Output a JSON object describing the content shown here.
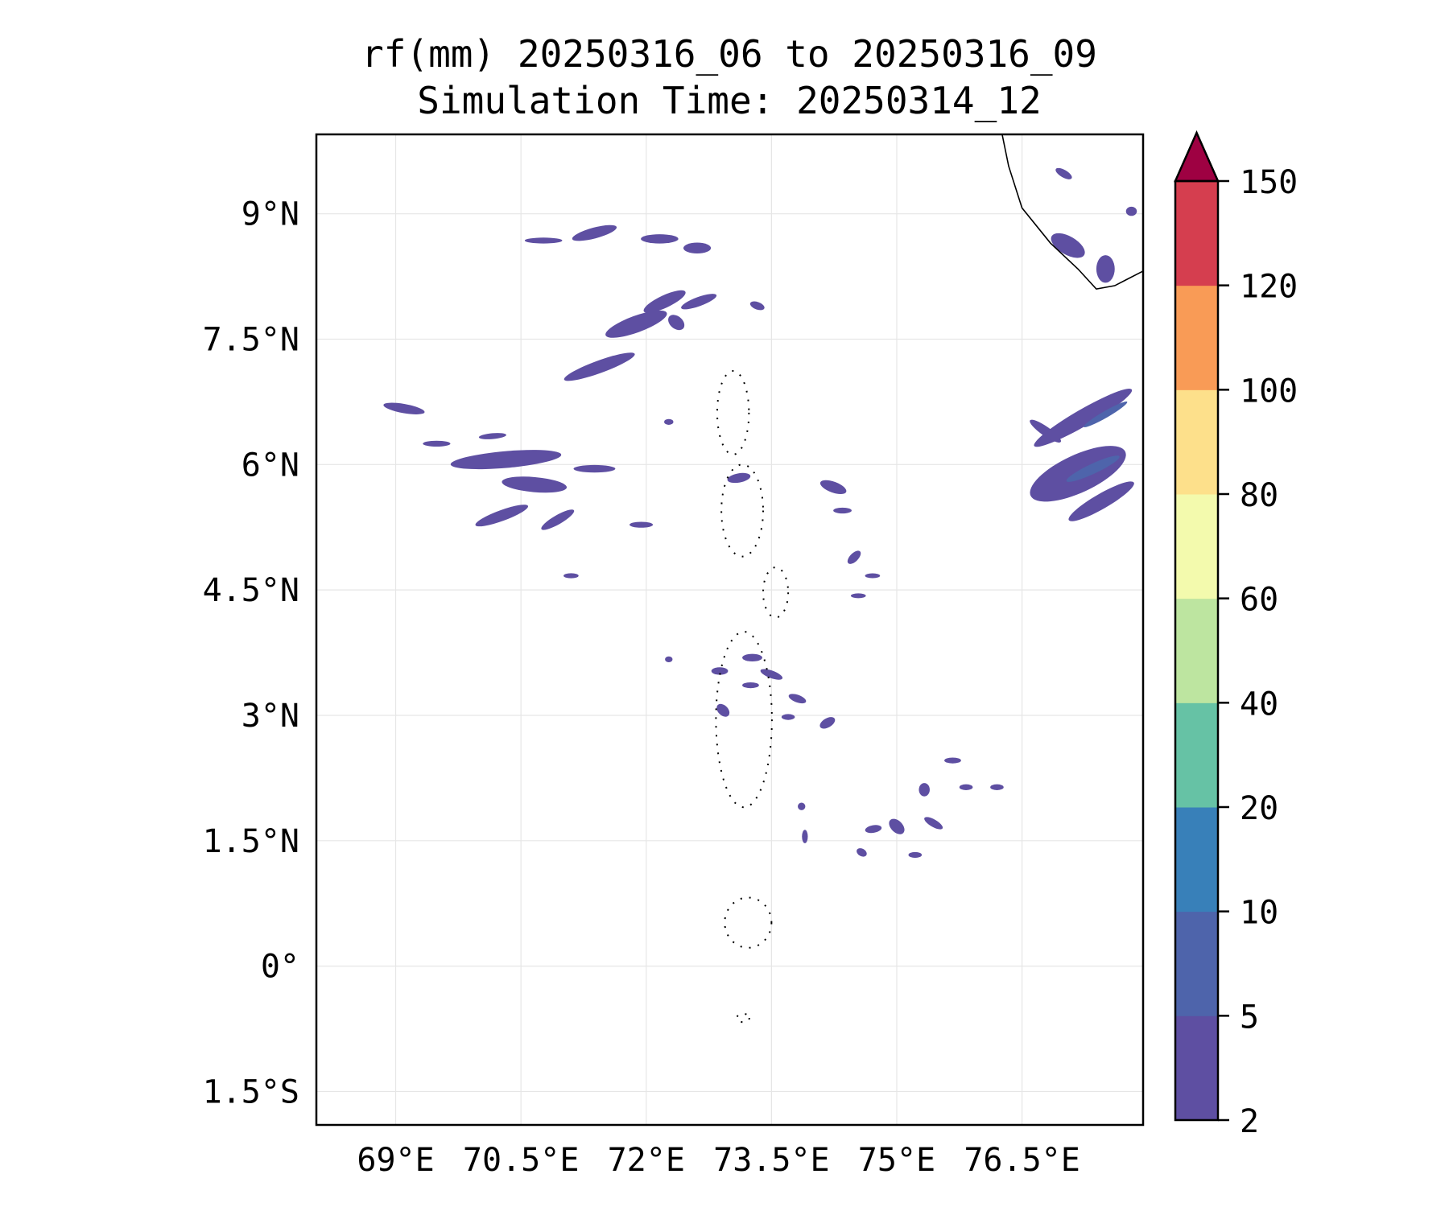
{
  "chart_data": {
    "type": "heatmap",
    "subtype": "filled-contour-map",
    "title": [
      "rf(mm) 20250316_06 to 20250316_09",
      "Simulation Time: 20250314_12"
    ],
    "xlabel": "",
    "ylabel": "",
    "xlim": [
      68.05,
      77.95
    ],
    "ylim": [
      -1.9,
      9.95
    ],
    "grid": true,
    "x_ticks": [
      69,
      70.5,
      72,
      73.5,
      75,
      76.5
    ],
    "x_tick_labels": [
      "69°E",
      "70.5°E",
      "72°E",
      "73.5°E",
      "75°E",
      "76.5°E"
    ],
    "y_ticks": [
      9,
      7.5,
      6,
      4.5,
      3,
      1.5,
      0,
      -1.5
    ],
    "y_tick_labels": [
      "9°N",
      "7.5°N",
      "6°N",
      "4.5°N",
      "3°N",
      "1.5°N",
      "0°",
      "1.5°S"
    ],
    "colorbar": {
      "levels": [
        2,
        5,
        10,
        20,
        40,
        60,
        80,
        100,
        120,
        150
      ],
      "tick_labels": [
        "2",
        "5",
        "10",
        "20",
        "40",
        "60",
        "80",
        "100",
        "120",
        "150"
      ],
      "colors": [
        "#5e4fa2",
        "#4e64ab",
        "#3880b9",
        "#66c2a5",
        "#bde5a0",
        "#f3faad",
        "#fde08b",
        "#f99b56",
        "#d53e4f"
      ],
      "extend_color": "#9e0142",
      "extend": "max",
      "placement": "right"
    },
    "rain_cells": [
      {
        "lon": 70.77,
        "lat": 8.68,
        "dlon": 0.45,
        "dlat": 0.07,
        "rot": 0,
        "level": 0
      },
      {
        "lon": 71.38,
        "lat": 8.77,
        "dlon": 0.55,
        "dlat": 0.13,
        "rot": -15,
        "level": 0
      },
      {
        "lon": 72.16,
        "lat": 8.7,
        "dlon": 0.45,
        "dlat": 0.11,
        "rot": 0,
        "level": 0
      },
      {
        "lon": 72.61,
        "lat": 8.59,
        "dlon": 0.33,
        "dlat": 0.13,
        "rot": 0,
        "level": 0
      },
      {
        "lon": 72.22,
        "lat": 7.95,
        "dlon": 0.55,
        "dlat": 0.15,
        "rot": -25,
        "level": 0
      },
      {
        "lon": 72.63,
        "lat": 7.95,
        "dlon": 0.45,
        "dlat": 0.11,
        "rot": -20,
        "level": 0
      },
      {
        "lon": 71.88,
        "lat": 7.68,
        "dlon": 0.78,
        "dlat": 0.2,
        "rot": -20,
        "level": 0
      },
      {
        "lon": 72.36,
        "lat": 7.7,
        "dlon": 0.22,
        "dlat": 0.15,
        "rot": 40,
        "level": 0
      },
      {
        "lon": 73.33,
        "lat": 7.9,
        "dlon": 0.18,
        "dlat": 0.09,
        "rot": 20,
        "level": 0
      },
      {
        "lon": 71.44,
        "lat": 7.17,
        "dlon": 0.9,
        "dlat": 0.15,
        "rot": -20,
        "level": 0
      },
      {
        "lon": 69.1,
        "lat": 6.67,
        "dlon": 0.5,
        "dlat": 0.11,
        "rot": 10,
        "level": 0
      },
      {
        "lon": 70.32,
        "lat": 6.06,
        "dlon": 1.33,
        "dlat": 0.2,
        "rot": -5,
        "level": 0
      },
      {
        "lon": 70.66,
        "lat": 5.76,
        "dlon": 0.78,
        "dlat": 0.18,
        "rot": 5,
        "level": 0
      },
      {
        "lon": 70.27,
        "lat": 5.39,
        "dlon": 0.67,
        "dlat": 0.13,
        "rot": -20,
        "level": 0
      },
      {
        "lon": 70.94,
        "lat": 5.34,
        "dlon": 0.45,
        "dlat": 0.11,
        "rot": -30,
        "level": 0
      },
      {
        "lon": 71.38,
        "lat": 5.95,
        "dlon": 0.5,
        "dlat": 0.09,
        "rot": 0,
        "level": 0
      },
      {
        "lon": 69.49,
        "lat": 6.25,
        "dlon": 0.33,
        "dlat": 0.07,
        "rot": 0,
        "level": 0
      },
      {
        "lon": 70.16,
        "lat": 6.34,
        "dlon": 0.33,
        "dlat": 0.07,
        "rot": -5,
        "level": 0
      },
      {
        "lon": 71.94,
        "lat": 5.28,
        "dlon": 0.28,
        "dlat": 0.07,
        "rot": 0,
        "level": 0
      },
      {
        "lon": 73.11,
        "lat": 5.84,
        "dlon": 0.28,
        "dlat": 0.11,
        "rot": -10,
        "level": 0
      },
      {
        "lon": 74.24,
        "lat": 5.73,
        "dlon": 0.33,
        "dlat": 0.13,
        "rot": 20,
        "level": 0
      },
      {
        "lon": 74.49,
        "lat": 4.89,
        "dlon": 0.2,
        "dlat": 0.1,
        "rot": -45,
        "level": 0
      },
      {
        "lon": 74.71,
        "lat": 4.67,
        "dlon": 0.18,
        "dlat": 0.05,
        "rot": 0,
        "level": 0
      },
      {
        "lon": 71.1,
        "lat": 4.67,
        "dlon": 0.18,
        "dlat": 0.06,
        "rot": 0,
        "level": 0
      },
      {
        "lon": 74.54,
        "lat": 4.43,
        "dlon": 0.18,
        "dlat": 0.05,
        "rot": 0,
        "level": 0
      },
      {
        "lon": 73.27,
        "lat": 3.69,
        "dlon": 0.24,
        "dlat": 0.09,
        "rot": 0,
        "level": 0
      },
      {
        "lon": 72.88,
        "lat": 3.53,
        "dlon": 0.2,
        "dlat": 0.09,
        "rot": 0,
        "level": 0
      },
      {
        "lon": 73.5,
        "lat": 3.49,
        "dlon": 0.28,
        "dlat": 0.09,
        "rot": 20,
        "level": 0
      },
      {
        "lon": 73.25,
        "lat": 3.36,
        "dlon": 0.2,
        "dlat": 0.07,
        "rot": 0,
        "level": 0
      },
      {
        "lon": 73.81,
        "lat": 3.2,
        "dlon": 0.22,
        "dlat": 0.09,
        "rot": 20,
        "level": 0
      },
      {
        "lon": 72.92,
        "lat": 3.06,
        "dlon": 0.18,
        "dlat": 0.12,
        "rot": 45,
        "level": 0
      },
      {
        "lon": 74.17,
        "lat": 2.91,
        "dlon": 0.2,
        "dlat": 0.11,
        "rot": -30,
        "level": 0
      },
      {
        "lon": 73.7,
        "lat": 2.98,
        "dlon": 0.16,
        "dlat": 0.07,
        "rot": 0,
        "level": 0
      },
      {
        "lon": 75.33,
        "lat": 2.11,
        "dlon": 0.13,
        "dlat": 0.16,
        "rot": 0,
        "level": 0
      },
      {
        "lon": 75.83,
        "lat": 2.14,
        "dlon": 0.16,
        "dlat": 0.07,
        "rot": 0,
        "level": 0
      },
      {
        "lon": 76.2,
        "lat": 2.14,
        "dlon": 0.16,
        "dlat": 0.07,
        "rot": 0,
        "level": 0
      },
      {
        "lon": 75.0,
        "lat": 1.67,
        "dlon": 0.22,
        "dlat": 0.14,
        "rot": 45,
        "level": 0
      },
      {
        "lon": 74.72,
        "lat": 1.64,
        "dlon": 0.2,
        "dlat": 0.09,
        "rot": -10,
        "level": 0
      },
      {
        "lon": 75.44,
        "lat": 1.71,
        "dlon": 0.25,
        "dlat": 0.09,
        "rot": 30,
        "level": 0
      },
      {
        "lon": 74.58,
        "lat": 1.36,
        "dlon": 0.13,
        "dlat": 0.09,
        "rot": 30,
        "level": 0
      },
      {
        "lon": 75.22,
        "lat": 1.33,
        "dlon": 0.16,
        "dlat": 0.07,
        "rot": 0,
        "level": 0
      },
      {
        "lon": 73.9,
        "lat": 1.55,
        "dlon": 0.07,
        "dlat": 0.16,
        "rot": 0,
        "level": 0
      },
      {
        "lon": 73.86,
        "lat": 1.91,
        "dlon": 0.09,
        "dlat": 0.09,
        "rot": 0,
        "level": 0
      },
      {
        "lon": 75.67,
        "lat": 2.46,
        "dlon": 0.2,
        "dlat": 0.07,
        "rot": 0,
        "level": 0
      },
      {
        "lon": 74.35,
        "lat": 5.45,
        "dlon": 0.22,
        "dlat": 0.07,
        "rot": 0,
        "level": 0
      },
      {
        "lon": 72.27,
        "lat": 6.51,
        "dlon": 0.11,
        "dlat": 0.07,
        "rot": 0,
        "level": 0
      },
      {
        "lon": 72.27,
        "lat": 3.67,
        "dlon": 0.09,
        "dlat": 0.07,
        "rot": 0,
        "level": 0
      },
      {
        "lon": 77.23,
        "lat": 6.56,
        "dlon": 1.35,
        "dlat": 0.2,
        "rot": -30,
        "level": 0
      },
      {
        "lon": 77.17,
        "lat": 5.89,
        "dlon": 1.25,
        "dlat": 0.45,
        "rot": -25,
        "level": 0
      },
      {
        "lon": 76.78,
        "lat": 6.4,
        "dlon": 0.45,
        "dlat": 0.11,
        "rot": 35,
        "level": 0
      },
      {
        "lon": 77.45,
        "lat": 5.56,
        "dlon": 0.9,
        "dlat": 0.18,
        "rot": -30,
        "level": 0
      },
      {
        "lon": 77.35,
        "lat": 5.95,
        "dlon": 0.7,
        "dlat": 0.12,
        "rot": -25,
        "level": 1
      },
      {
        "lon": 77.5,
        "lat": 6.6,
        "dlon": 0.6,
        "dlat": 0.08,
        "rot": -30,
        "level": 1
      },
      {
        "lon": 77.05,
        "lat": 8.62,
        "dlon": 0.45,
        "dlat": 0.22,
        "rot": 30,
        "level": 0
      },
      {
        "lon": 77.5,
        "lat": 8.34,
        "dlon": 0.22,
        "dlat": 0.33,
        "rot": 0,
        "level": 0
      },
      {
        "lon": 77.0,
        "lat": 9.48,
        "dlon": 0.22,
        "dlat": 0.09,
        "rot": 30,
        "level": 0
      },
      {
        "lon": 77.81,
        "lat": 9.03,
        "dlon": 0.13,
        "dlat": 0.11,
        "rot": 0,
        "level": 0
      }
    ],
    "coastline_india": [
      [
        76.26,
        9.96
      ],
      [
        76.34,
        9.57
      ],
      [
        76.5,
        9.07
      ],
      [
        76.84,
        8.65
      ],
      [
        77.17,
        8.34
      ],
      [
        77.39,
        8.1
      ],
      [
        77.61,
        8.14
      ],
      [
        77.96,
        8.32
      ]
    ],
    "atolls": [
      {
        "lon": 73.04,
        "lat": 6.62,
        "dlon": 0.38,
        "dlat": 1.0
      },
      {
        "lon": 73.15,
        "lat": 5.45,
        "dlon": 0.5,
        "dlat": 1.1
      },
      {
        "lon": 73.55,
        "lat": 4.47,
        "dlon": 0.3,
        "dlat": 0.6
      },
      {
        "lon": 73.17,
        "lat": 2.95,
        "dlon": 0.67,
        "dlat": 2.1
      },
      {
        "lon": 73.22,
        "lat": 0.52,
        "dlon": 0.56,
        "dlat": 0.6
      },
      {
        "lon": 73.16,
        "lat": -0.62,
        "dlon": 0.15,
        "dlat": 0.1
      }
    ]
  }
}
